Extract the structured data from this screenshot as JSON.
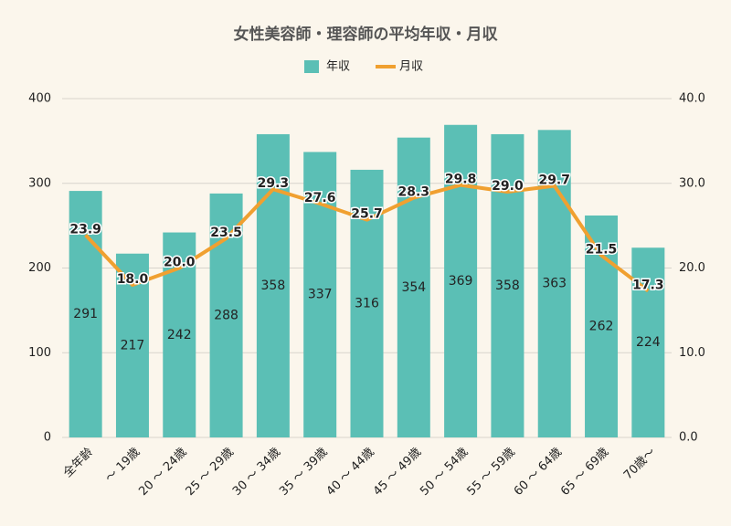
{
  "chart_data": {
    "type": "bar",
    "title": "女性美容師・理容師の平均年収・月収",
    "categories": [
      "全年齢",
      "～ 19歳",
      "20 ～ 24歳",
      "25 ～ 29歳",
      "30 ～ 34歳",
      "35 ～ 39歳",
      "40 ～ 44歳",
      "45 ～ 49歳",
      "50 ～ 54歳",
      "55 ～ 59歳",
      "60 ～ 64歳",
      "65 ～ 69歳",
      "70歳～"
    ],
    "series": [
      {
        "name": "年収",
        "type": "bar",
        "color": "#5bbfb5",
        "values": [
          291,
          217,
          242,
          288,
          358,
          337,
          316,
          354,
          369,
          358,
          363,
          262,
          224
        ]
      },
      {
        "name": "月収",
        "type": "line",
        "axis": "y2",
        "color": "#f0a030",
        "values": [
          23.9,
          18.0,
          20.0,
          23.5,
          29.3,
          27.6,
          25.7,
          28.3,
          29.8,
          29.0,
          29.7,
          21.5,
          17.3
        ],
        "value_labels": [
          "23.9",
          "18.0",
          "20.0",
          "23.5",
          "29.3",
          "27.6",
          "25.7",
          "28.3",
          "29.8",
          "29.0",
          "29.7",
          "21.5",
          "17.3"
        ]
      }
    ],
    "ylim": [
      0,
      400
    ],
    "yticks": [
      0,
      100,
      200,
      300,
      400
    ],
    "y2lim": [
      0,
      40
    ],
    "y2ticks": [
      {
        "value": 0,
        "label": "0.0"
      },
      {
        "value": 10,
        "label": "10.0"
      },
      {
        "value": 20,
        "label": "20.0"
      },
      {
        "value": 30,
        "label": "30.0"
      },
      {
        "value": 40,
        "label": "40.0"
      }
    ],
    "grid": true,
    "legend": "top"
  }
}
